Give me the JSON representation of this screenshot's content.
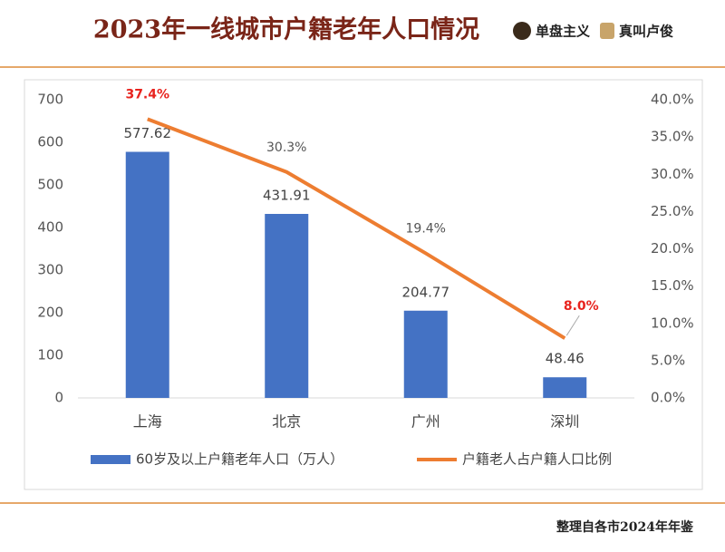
{
  "header": {
    "title": "2023年一线城市户籍老年人口情况",
    "logos": [
      "单盘主义",
      "真叫卢俊"
    ]
  },
  "footer": {
    "source": "整理自各市2024年年鉴"
  },
  "chart_data": {
    "type": "bar_line",
    "categories": [
      "上海",
      "北京",
      "广州",
      "深圳"
    ],
    "series": [
      {
        "name": "60岁及以上户籍老年人口（万人）",
        "color": "#4472c4",
        "values": [
          577.62,
          431.91,
          204.77,
          48.46
        ]
      },
      {
        "name": "户籍老人占户籍人口比例",
        "color": "#ed7d31",
        "axis": "y2",
        "values": [
          37.4,
          30.3,
          19.4,
          8.0
        ],
        "value_labels": [
          "37.4%",
          "30.3%",
          "19.4%",
          "8.0%"
        ],
        "label_colors": [
          "#e8231e",
          "#555555",
          "#555555",
          "#e8231e"
        ]
      }
    ],
    "ylim": [
      0,
      700
    ],
    "yticks": [
      0,
      100,
      200,
      300,
      400,
      500,
      600,
      700
    ],
    "y2lim": [
      0,
      40
    ],
    "y2ticks": [
      {
        "value": 0,
        "label": "0.0%"
      },
      {
        "value": 5,
        "label": "5.0%"
      },
      {
        "value": 10,
        "label": "10.0%"
      },
      {
        "value": 15,
        "label": "15.0%"
      },
      {
        "value": 20,
        "label": "20.0%"
      },
      {
        "value": 25,
        "label": "25.0%"
      },
      {
        "value": 30,
        "label": "30.0%"
      },
      {
        "value": 35,
        "label": "35.0%"
      },
      {
        "value": 40,
        "label": "40.0%"
      }
    ],
    "legend": "bottom"
  }
}
